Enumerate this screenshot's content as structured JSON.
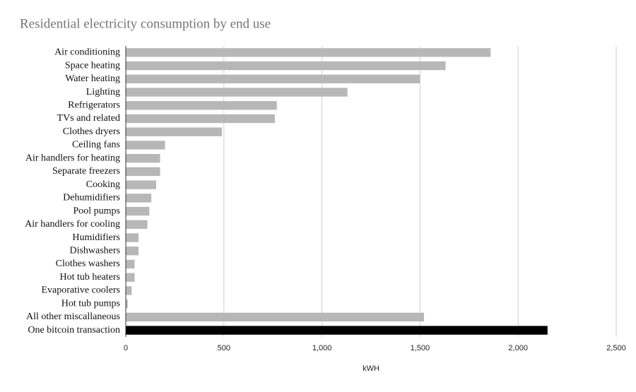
{
  "chart_data": {
    "type": "hbar",
    "title": "Residential electricity consumption by end use",
    "categories": [
      "Air conditioning",
      "Space heating",
      "Water heating",
      "Lighting",
      "Refrigerators",
      "TVs and related",
      "Clothes dryers",
      "Ceiling fans",
      "Air handlers for heating",
      "Separate freezers",
      "Cooking",
      "Dehumidifiers",
      "Pool pumps",
      "Air handlers for cooling",
      "Humidifiers",
      "Dishwashers",
      "Clothes washers",
      "Hot tub heaters",
      "Evaporative coolers",
      "Hot tub pumps",
      "All other miscallaneous",
      "One bitcoin transaction"
    ],
    "values": [
      1860,
      1630,
      1500,
      1130,
      770,
      760,
      490,
      200,
      175,
      175,
      155,
      130,
      120,
      110,
      65,
      65,
      45,
      45,
      30,
      10,
      1520,
      2150
    ],
    "colors": [
      "#b7b7b7",
      "#b7b7b7",
      "#b7b7b7",
      "#b7b7b7",
      "#b7b7b7",
      "#b7b7b7",
      "#b7b7b7",
      "#b7b7b7",
      "#b7b7b7",
      "#b7b7b7",
      "#b7b7b7",
      "#b7b7b7",
      "#b7b7b7",
      "#b7b7b7",
      "#b7b7b7",
      "#b7b7b7",
      "#b7b7b7",
      "#b7b7b7",
      "#b7b7b7",
      "#b7b7b7",
      "#b7b7b7",
      "#000000"
    ],
    "xlabel": "kWH",
    "xlim": [
      0,
      2500
    ],
    "xticks": [
      0,
      500,
      {
        "value": 1000,
        "label": "1,000"
      },
      {
        "value": 1500,
        "label": "1,500"
      },
      {
        "value": 2000,
        "label": "2,000"
      },
      {
        "value": 2500,
        "label": "2,500"
      }
    ],
    "grid": true
  }
}
